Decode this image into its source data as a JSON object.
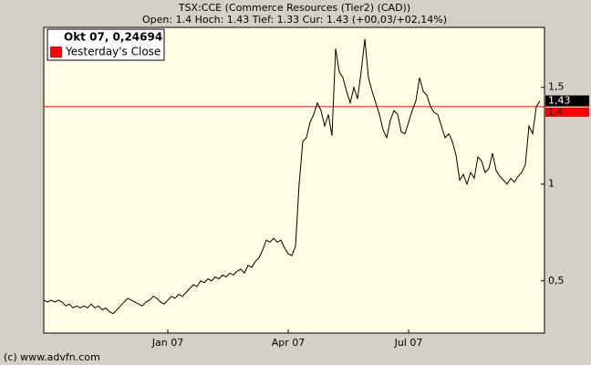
{
  "chart_data": {
    "type": "line",
    "title": "TSX:CCE (Commerce Resources (Tier2) (CAD))",
    "subtitle": "Open: 1.4 Hoch: 1.43 Tief: 1.33 Cur: 1.43 (+00,03/+02,14%)",
    "hover_label": "Okt 07, 0,24694",
    "credit": "(c) www.advfn.com",
    "color": "#000000",
    "categories": [
      null,
      null,
      null,
      null,
      null,
      null,
      null,
      null,
      null,
      null,
      null,
      null,
      null,
      null,
      null,
      null,
      null,
      null,
      null,
      null,
      null,
      null,
      null,
      null,
      null,
      null,
      null,
      null,
      null,
      null,
      null,
      null,
      null,
      null,
      "Jan 07",
      null,
      null,
      null,
      null,
      null,
      null,
      null,
      null,
      null,
      null,
      null,
      null,
      null,
      null,
      null,
      null,
      null,
      null,
      null,
      null,
      null,
      null,
      null,
      null,
      null,
      null,
      null,
      null,
      null,
      null,
      null,
      null,
      "Apr 07",
      null,
      null,
      null,
      null,
      null,
      null,
      null,
      null,
      null,
      null,
      null,
      null,
      null,
      null,
      null,
      null,
      null,
      null,
      null,
      null,
      null,
      null,
      null,
      null,
      null,
      null,
      null,
      null,
      null,
      null,
      null,
      null,
      "Jul 07",
      null,
      null,
      null,
      null,
      null,
      null,
      null,
      null,
      null,
      null,
      null,
      null,
      null,
      null,
      null,
      null,
      null,
      null,
      null,
      null,
      null,
      null,
      null,
      null,
      null,
      null,
      null,
      null,
      null,
      null,
      null,
      null,
      null,
      null,
      null,
      null
    ],
    "values": [
      0.4,
      0.39,
      0.4,
      0.39,
      0.4,
      0.39,
      0.37,
      0.38,
      0.36,
      0.37,
      0.36,
      0.37,
      0.36,
      0.38,
      0.36,
      0.37,
      0.35,
      0.36,
      0.34,
      0.33,
      0.35,
      0.37,
      0.39,
      0.41,
      0.4,
      0.39,
      0.38,
      0.37,
      0.39,
      0.4,
      0.42,
      0.41,
      0.39,
      0.38,
      0.4,
      0.42,
      0.41,
      0.43,
      0.42,
      0.44,
      0.46,
      0.48,
      0.47,
      0.5,
      0.49,
      0.51,
      0.5,
      0.52,
      0.51,
      0.53,
      0.52,
      0.54,
      0.53,
      0.55,
      0.56,
      0.54,
      0.58,
      0.57,
      0.6,
      0.62,
      0.66,
      0.71,
      0.7,
      0.72,
      0.7,
      0.71,
      0.67,
      0.64,
      0.63,
      0.68,
      1.0,
      1.22,
      1.24,
      1.32,
      1.36,
      1.42,
      1.38,
      1.3,
      1.36,
      1.25,
      1.7,
      1.58,
      1.55,
      1.48,
      1.42,
      1.5,
      1.44,
      1.58,
      1.75,
      1.55,
      1.48,
      1.42,
      1.36,
      1.28,
      1.24,
      1.33,
      1.38,
      1.36,
      1.27,
      1.26,
      1.32,
      1.38,
      1.43,
      1.55,
      1.48,
      1.46,
      1.4,
      1.37,
      1.36,
      1.3,
      1.24,
      1.26,
      1.22,
      1.15,
      1.02,
      1.05,
      1.0,
      1.06,
      1.03,
      1.14,
      1.12,
      1.06,
      1.08,
      1.16,
      1.07,
      1.04,
      1.02,
      1.0,
      1.03,
      1.01,
      1.04,
      1.06,
      1.1,
      1.3,
      1.26,
      1.4,
      1.43
    ],
    "ylim": [
      0.23,
      1.81
    ],
    "yticks": [
      {
        "value": 0.5,
        "label": "0,5"
      },
      1,
      {
        "value": 1.5,
        "label": "1,5"
      }
    ],
    "reference_line": {
      "name": "Yesterday's Close",
      "value": 1.4,
      "label": "1,4",
      "color": "#ff0000"
    },
    "last_value": {
      "value": 1.43,
      "label": "1,43"
    }
  }
}
